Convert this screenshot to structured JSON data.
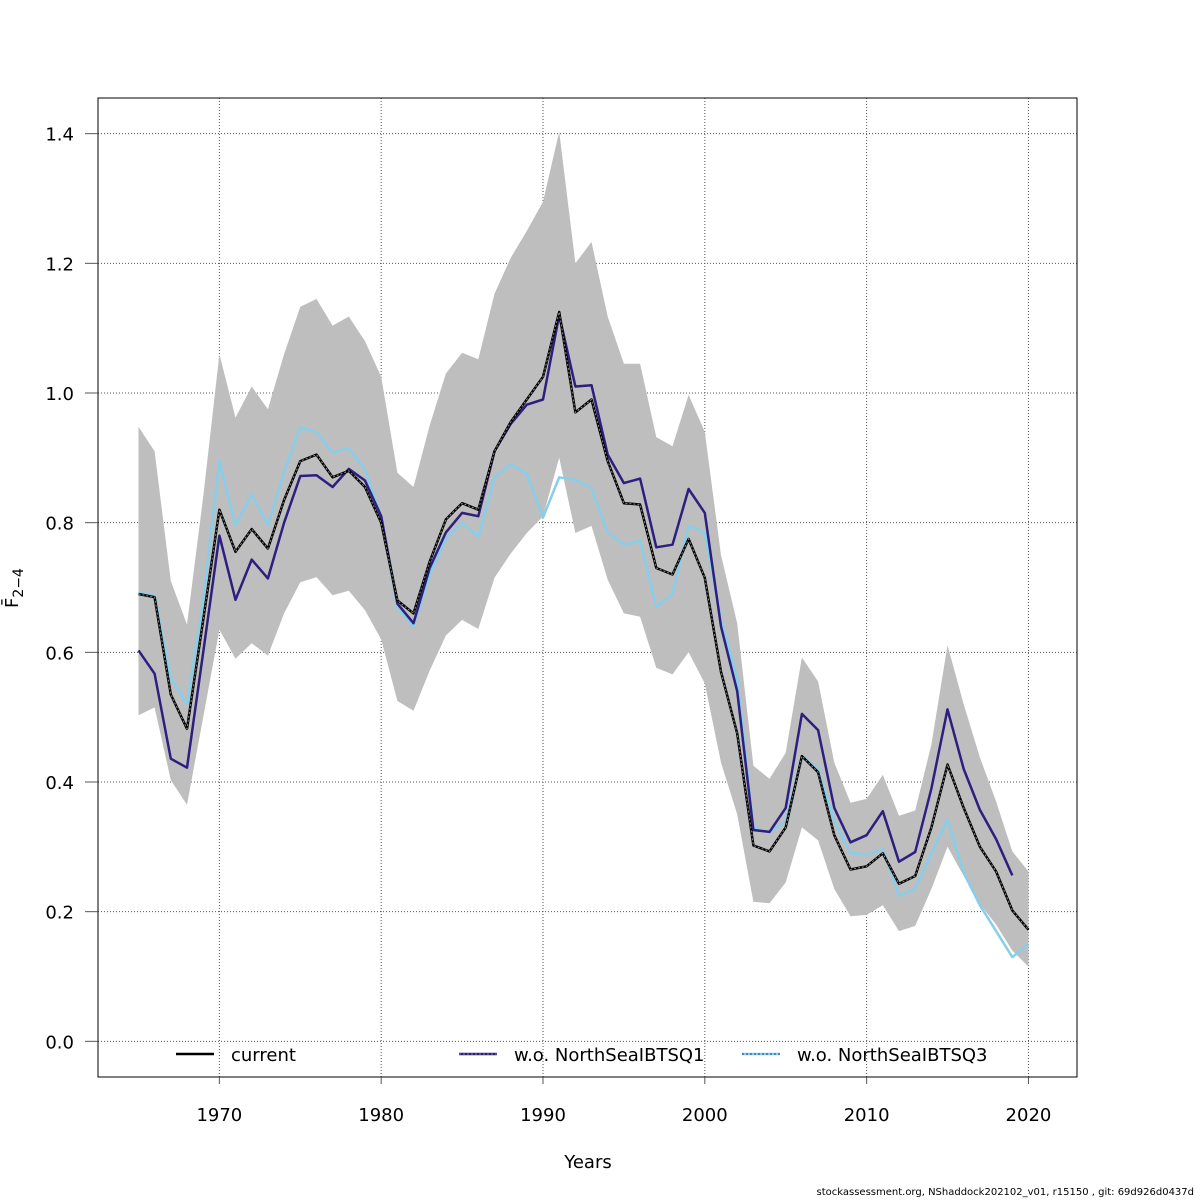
{
  "chart_data": {
    "type": "line",
    "title": "",
    "xlabel": "Years",
    "ylabel": "F̄",
    "ylabel_subscript": "2−4",
    "xlim": [
      1962.5,
      2023
    ],
    "ylim": [
      -0.055,
      1.455
    ],
    "grid": true,
    "x_ticks": [
      1970,
      1980,
      1990,
      2000,
      2010,
      2020
    ],
    "x_tick_labels": [
      "1970",
      "1980",
      "1990",
      "2000",
      "2010",
      "2020"
    ],
    "y_ticks": [
      0.0,
      0.2,
      0.4,
      0.6,
      0.8,
      1.0,
      1.2,
      1.4
    ],
    "y_tick_labels": [
      "0.0",
      "0.2",
      "0.4",
      "0.6",
      "0.8",
      "1.0",
      "1.2",
      "1.4"
    ],
    "legend_position": "bottom",
    "x": [
      1965,
      1966,
      1967,
      1968,
      1969,
      1970,
      1971,
      1972,
      1973,
      1974,
      1975,
      1976,
      1977,
      1978,
      1979,
      1980,
      1981,
      1982,
      1983,
      1984,
      1985,
      1986,
      1987,
      1988,
      1989,
      1990,
      1991,
      1992,
      1993,
      1994,
      1995,
      1996,
      1997,
      1998,
      1999,
      2000,
      2001,
      2002,
      2003,
      2004,
      2005,
      2006,
      2007,
      2008,
      2009,
      2010,
      2011,
      2012,
      2013,
      2014,
      2015,
      2016,
      2017,
      2018,
      2019,
      2020
    ],
    "confidence_band": {
      "name": "current CI",
      "color": "#bebebe",
      "upper": [
        0.948,
        0.91,
        0.71,
        0.643,
        0.84,
        1.06,
        0.962,
        1.01,
        0.975,
        1.06,
        1.133,
        1.145,
        1.104,
        1.118,
        1.08,
        1.025,
        0.877,
        0.855,
        0.95,
        1.03,
        1.062,
        1.052,
        1.153,
        1.208,
        1.25,
        1.295,
        1.403,
        1.2,
        1.233,
        1.118,
        1.045,
        1.045,
        0.932,
        0.918,
        0.997,
        0.94,
        0.75,
        0.645,
        0.425,
        0.405,
        0.445,
        0.592,
        0.555,
        0.43,
        0.368,
        0.374,
        0.411,
        0.348,
        0.356,
        0.458,
        0.611,
        0.52,
        0.438,
        0.37,
        0.293,
        0.262
      ],
      "lower": [
        0.503,
        0.515,
        0.403,
        0.365,
        0.5,
        0.635,
        0.59,
        0.614,
        0.595,
        0.66,
        0.708,
        0.716,
        0.688,
        0.695,
        0.665,
        0.62,
        0.525,
        0.51,
        0.572,
        0.626,
        0.65,
        0.636,
        0.715,
        0.752,
        0.784,
        0.81,
        0.9,
        0.784,
        0.795,
        0.712,
        0.66,
        0.655,
        0.576,
        0.566,
        0.6,
        0.552,
        0.43,
        0.35,
        0.215,
        0.213,
        0.245,
        0.33,
        0.31,
        0.235,
        0.193,
        0.195,
        0.21,
        0.17,
        0.178,
        0.235,
        0.3,
        0.255,
        0.212,
        0.18,
        0.14,
        0.115
      ]
    },
    "series": [
      {
        "name": "current",
        "color": "#000000",
        "values": [
          0.69,
          0.685,
          0.535,
          0.482,
          0.65,
          0.82,
          0.755,
          0.79,
          0.76,
          0.835,
          0.895,
          0.905,
          0.87,
          0.88,
          0.855,
          0.8,
          0.68,
          0.66,
          0.74,
          0.805,
          0.83,
          0.82,
          0.91,
          0.955,
          0.99,
          1.025,
          1.125,
          0.97,
          0.99,
          0.895,
          0.83,
          0.828,
          0.73,
          0.72,
          0.775,
          0.715,
          0.57,
          0.475,
          0.302,
          0.293,
          0.33,
          0.44,
          0.415,
          0.318,
          0.265,
          0.27,
          0.29,
          0.243,
          0.255,
          0.33,
          0.427,
          0.36,
          0.3,
          0.262,
          0.202,
          0.172
        ]
      },
      {
        "name": "w.o. NorthSeaIBTSQ1",
        "color": "#2c1f7f",
        "values": [
          0.603,
          0.567,
          0.436,
          0.422,
          0.6,
          0.78,
          0.681,
          0.743,
          0.714,
          0.8,
          0.872,
          0.873,
          0.855,
          0.883,
          0.865,
          0.81,
          0.675,
          0.645,
          0.73,
          0.785,
          0.815,
          0.81,
          0.91,
          0.952,
          0.982,
          0.99,
          1.12,
          1.01,
          1.012,
          0.905,
          0.861,
          0.868,
          0.762,
          0.766,
          0.852,
          0.815,
          0.64,
          0.54,
          0.326,
          0.323,
          0.36,
          0.505,
          0.48,
          0.36,
          0.307,
          0.318,
          0.355,
          0.277,
          0.292,
          0.39,
          0.512,
          0.42,
          0.357,
          0.312,
          0.256,
          null
        ]
      },
      {
        "name": "w.o. NorthSeaIBTSQ3",
        "color": "#87ceeb",
        "values": [
          0.692,
          0.688,
          0.56,
          0.52,
          0.68,
          0.895,
          0.796,
          0.843,
          0.796,
          0.878,
          0.947,
          0.94,
          0.908,
          0.915,
          0.882,
          0.81,
          0.67,
          0.64,
          0.72,
          0.775,
          0.8,
          0.778,
          0.87,
          0.89,
          0.876,
          0.808,
          0.87,
          0.866,
          0.853,
          0.785,
          0.766,
          0.772,
          0.67,
          0.69,
          0.795,
          0.785,
          0.65,
          0.56,
          0.33,
          0.322,
          0.34,
          0.44,
          0.42,
          0.34,
          0.29,
          0.288,
          0.296,
          0.225,
          0.235,
          0.29,
          0.342,
          0.26,
          0.21,
          0.17,
          0.13,
          0.15
        ]
      }
    ]
  },
  "legend": {
    "items": [
      {
        "label": "current",
        "color": "#000000",
        "style": "solid"
      },
      {
        "label": "w.o. NorthSeaIBTSQ1",
        "color": "#2c1f7f",
        "style": "solid-dotted"
      },
      {
        "label": "w.o. NorthSeaIBTSQ3",
        "color": "#87ceeb",
        "style": "dotted"
      }
    ]
  },
  "footer": "stockassessment.org, NShaddock202102_v01, r15150 , git: 69d926d0437d"
}
